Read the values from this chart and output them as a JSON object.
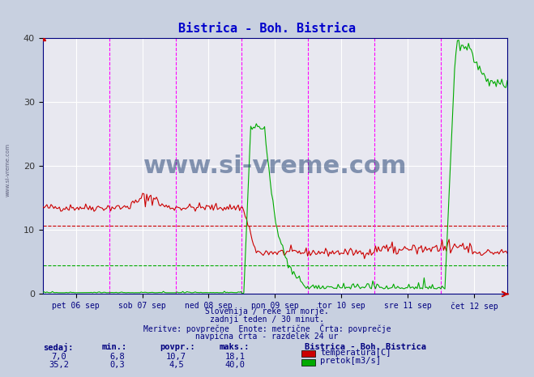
{
  "title": "Bistrica - Boh. Bistrica",
  "title_color": "#0000cc",
  "bg_color": "#d0d8e8",
  "plot_bg_color": "#e8e8f0",
  "grid_color": "#ffffff",
  "fig_bg_color": "#c8d0e0",
  "ylim": [
    0,
    40
  ],
  "yticks": [
    0,
    10,
    20,
    30,
    40
  ],
  "xlabel_color": "#000080",
  "xtick_labels": [
    "pet 06 sep",
    "sob 07 sep",
    "ned 08 sep",
    "pon 09 sep",
    "tor 10 sep",
    "sre 11 sep",
    "čet 12 sep"
  ],
  "vline_color": "#ff00ff",
  "temp_avg_line": 10.7,
  "flow_avg_line": 4.5,
  "temp_avg_color": "#cc0000",
  "flow_avg_color": "#00aa00",
  "watermark": "www.si-vreme.com",
  "watermark_color": "#1a3a6e",
  "left_label": "www.si-vreme.com",
  "footer_lines": [
    "Slovenija / reke in morje.",
    "zadnji teden / 30 minut.",
    "Meritve: povprečne  Enote: metrične  Črta: povprečje",
    "navpična črta - razdelek 24 ur"
  ],
  "legend_title": "Bistrica - Boh. Bistrica",
  "legend_entries": [
    {
      "label": "temperatura[C]",
      "color": "#cc0000"
    },
    {
      "label": "pretok[m3/s]",
      "color": "#00aa00"
    }
  ],
  "stats_headers": [
    "sedaj:",
    "min.:",
    "povpr.:",
    "maks.:"
  ],
  "stats_temp": [
    "7,0",
    "6,8",
    "10,7",
    "18,1"
  ],
  "stats_flow": [
    "35,2",
    "0,3",
    "4,5",
    "40,0"
  ],
  "n_points": 336,
  "temp_baseline": 13.5,
  "flow_baseline": 0.2
}
